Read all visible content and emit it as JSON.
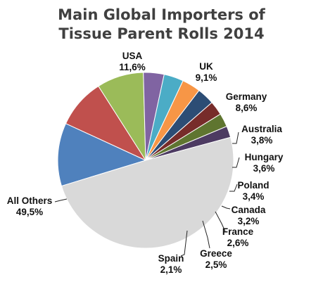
{
  "chart_data": {
    "type": "pie",
    "title_lines": [
      "Main Global Importers of",
      "Tissue Parent Rolls 2014"
    ],
    "slices": [
      {
        "name": "USA",
        "value_label": "11,6%",
        "value": 11.6,
        "color": "#4f81bd"
      },
      {
        "name": "UK",
        "value_label": "9,1%",
        "value": 9.1,
        "color": "#c0504d"
      },
      {
        "name": "Germany",
        "value_label": "8,6%",
        "value": 8.6,
        "color": "#9bbb59"
      },
      {
        "name": "Australia",
        "value_label": "3,8%",
        "value": 3.8,
        "color": "#8064a2"
      },
      {
        "name": "Hungary",
        "value_label": "3,6%",
        "value": 3.6,
        "color": "#4bacc6"
      },
      {
        "name": "Poland",
        "value_label": "3,4%",
        "value": 3.4,
        "color": "#f79646"
      },
      {
        "name": "Canada",
        "value_label": "3,2%",
        "value": 3.2,
        "color": "#2c4d75"
      },
      {
        "name": "France",
        "value_label": "2,6%",
        "value": 2.6,
        "color": "#772c2a"
      },
      {
        "name": "Greece",
        "value_label": "2,5%",
        "value": 2.5,
        "color": "#5f7530"
      },
      {
        "name": "Spain",
        "value_label": "2,1%",
        "value": 2.1,
        "color": "#4d3b62"
      },
      {
        "name": "All Others",
        "value_label": "49,5%",
        "value": 49.5,
        "color": "#d9d9d9"
      }
    ]
  }
}
